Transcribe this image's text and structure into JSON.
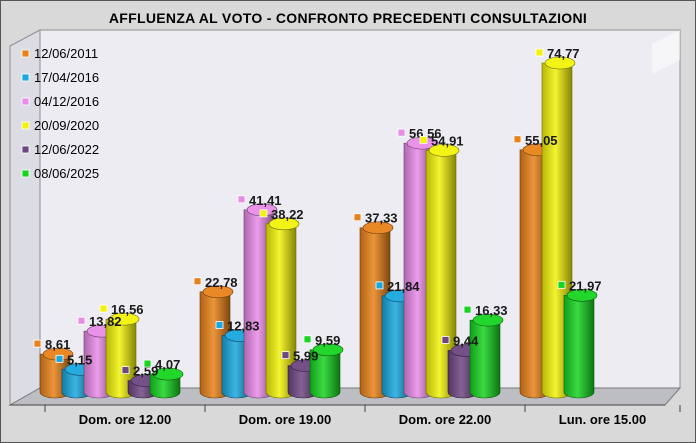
{
  "chart_data": {
    "type": "bar",
    "title": "AFFLUENZA  AL VOTO   -   CONFRONTO PRECEDENTI  CONSULTAZIONI",
    "categories": [
      "Dom.  ore 12.00",
      "Dom.  ore 19.00",
      "Dom.  ore 22.00",
      "Lun.  ore 15.00"
    ],
    "ylim": [
      0,
      80
    ],
    "grid": false,
    "legend_position": "top-left",
    "series": [
      {
        "name": "12/06/2011",
        "color": "#e8821a",
        "values": [
          8.61,
          22.78,
          37.33,
          55.05
        ],
        "labels": [
          "8,61",
          "22,78",
          "37,33",
          "55,05"
        ]
      },
      {
        "name": "17/04/2016",
        "color": "#1aa7de",
        "values": [
          5.15,
          12.83,
          21.84,
          null
        ],
        "labels": [
          "5,15",
          "12,83",
          "21,84",
          ""
        ]
      },
      {
        "name": "04/12/2016",
        "color": "#e98be8",
        "values": [
          13.82,
          41.41,
          56.56,
          null
        ],
        "labels": [
          "13,82",
          "41,41",
          "56,56",
          ""
        ]
      },
      {
        "name": "20/09/2020",
        "color": "#f2f20a",
        "values": [
          16.56,
          38.22,
          54.91,
          74.77
        ],
        "labels": [
          "16,56",
          "38,22",
          "54,91",
          "74,77"
        ]
      },
      {
        "name": "12/06/2022",
        "color": "#6e4682",
        "values": [
          2.59,
          5.99,
          9.44,
          null
        ],
        "labels": [
          "2,59",
          "5,99",
          "9,44",
          ""
        ]
      },
      {
        "name": "08/06/2025",
        "color": "#17d421",
        "values": [
          4.07,
          9.59,
          16.33,
          21.97
        ],
        "labels": [
          "4,07",
          "9,59",
          "16,33",
          "21,97"
        ]
      }
    ]
  }
}
